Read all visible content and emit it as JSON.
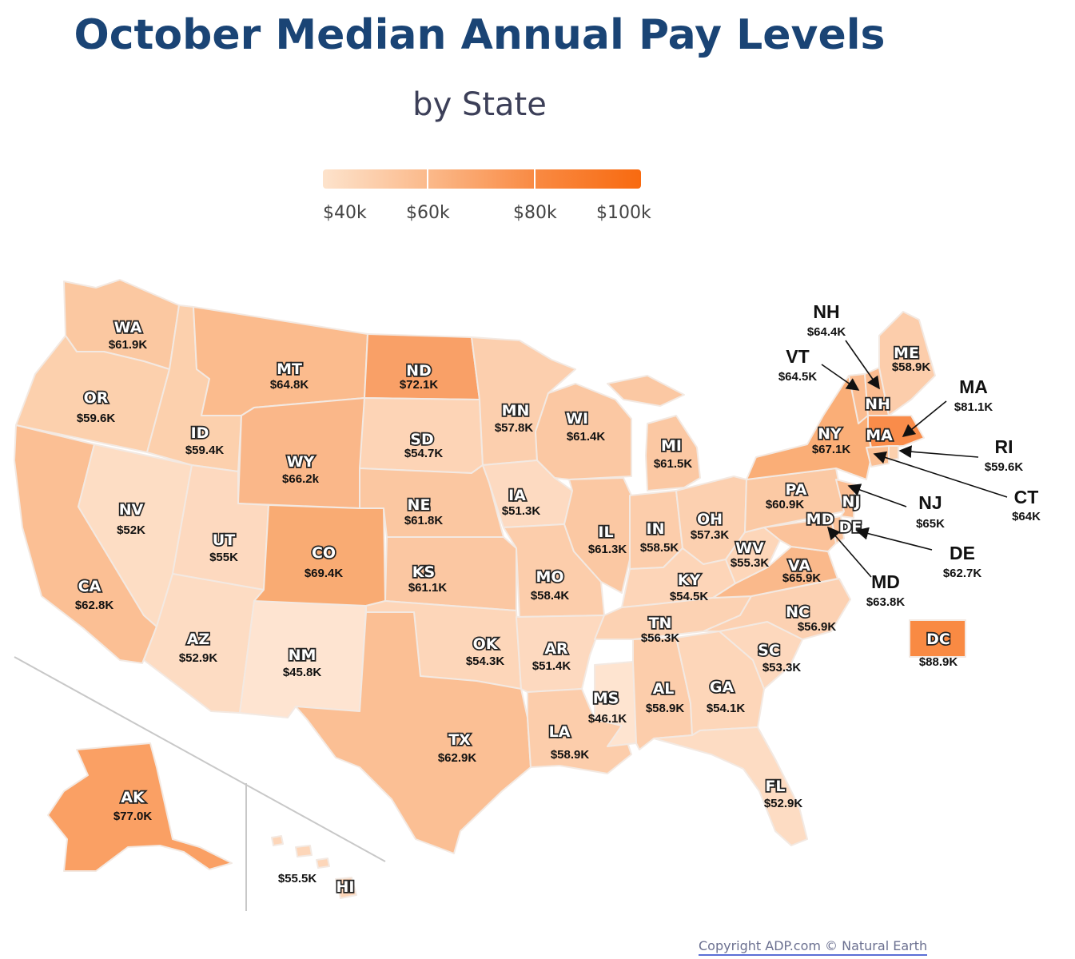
{
  "title": "October Median Annual Pay Levels",
  "subtitle": "by State",
  "legend": {
    "ticks": [
      "$40k",
      "$60k",
      "$80k",
      "$100k"
    ],
    "color_low": "#fde3cc",
    "color_high": "#f86a10"
  },
  "states": {
    "WA": "$61.9K",
    "OR": "$59.6K",
    "CA": "$62.8K",
    "NV": "$52K",
    "ID": "$59.4K",
    "MT": "$64.8K",
    "WY": "$66.2k",
    "UT": "$55K",
    "AZ": "$52.9K",
    "NM": "$45.8K",
    "CO": "$69.4K",
    "ND": "$72.1K",
    "SD": "$54.7K",
    "NE": "$61.8K",
    "KS": "$61.1K",
    "OK": "$54.3K",
    "TX": "$62.9K",
    "MN": "$57.8K",
    "IA": "$51.3K",
    "MO": "$58.4K",
    "AR": "$51.4K",
    "LA": "$58.9K",
    "WI": "$61.4K",
    "IL": "$61.3K",
    "MS": "$46.1K",
    "MI": "$61.5K",
    "IN": "$58.5K",
    "OH": "$57.3K",
    "KY": "$54.5K",
    "TN": "$56.3K",
    "AL": "$58.9K",
    "GA": "$54.1K",
    "FL": "$52.9K",
    "SC": "$53.3K",
    "NC": "$56.9K",
    "VA": "$65.9K",
    "WV": "$55.3K",
    "PA": "$60.9K",
    "NY": "$67.1K",
    "ME": "$58.9K",
    "AK": "$77.0K",
    "HI": "$55.5K",
    "DC": "$88.9K"
  },
  "callouts": {
    "NH": {
      "abbr": "NH",
      "value": "$64.4K"
    },
    "VT": {
      "abbr": "VT",
      "value": "$64.5K"
    },
    "MA": {
      "abbr": "MA",
      "value": "$81.1K"
    },
    "RI": {
      "abbr": "RI",
      "value": "$59.6K"
    },
    "CT": {
      "abbr": "CT",
      "value": "$64K"
    },
    "NJ": {
      "abbr": "NJ",
      "value": "$65K"
    },
    "DE": {
      "abbr": "DE",
      "value": "$62.7K"
    },
    "MD": {
      "abbr": "MD",
      "value": "$63.8K"
    }
  },
  "copyright": "Copyright ADP.com © Natural Earth"
}
